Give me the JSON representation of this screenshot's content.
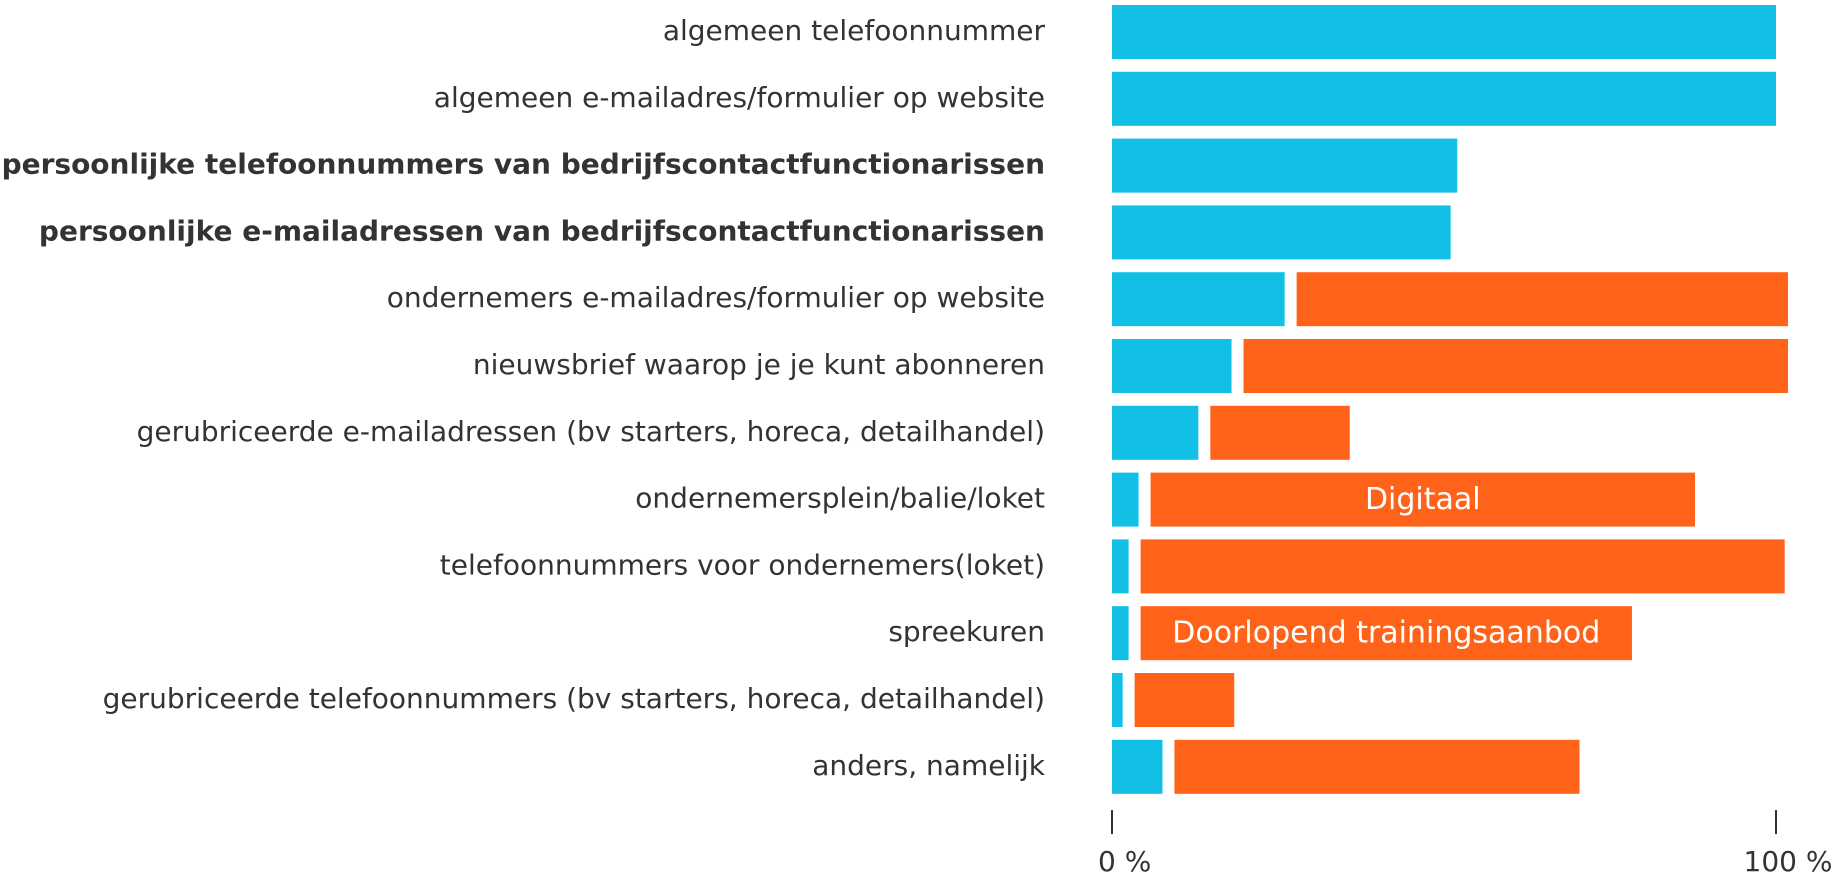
{
  "chart_data": {
    "type": "bar",
    "orientation": "horizontal",
    "stacked": true,
    "categories": [
      "algemeen telefoonnummer",
      "algemeen e-mailadres/formulier op website",
      "persoonlijke telefoonnummers van bedrijfscontactfunctionarissen",
      "persoonlijke e-mailadressen van bedrijfscontactfunctionarissen",
      "ondernemers e-mailadres/formulier op website",
      "nieuwsbrief waarop je je kunt abonneren",
      "gerubriceerde e-mailadressen (bv starters, horeca, detailhandel)",
      "ondernemersplein/balie/loket",
      "telefoonnummers voor ondernemers(loket)",
      "spreekuren",
      "gerubriceerde telefoonnummers (bv starters, horeca, detailhandel)",
      "anders, namelijk"
    ],
    "bold": [
      false,
      false,
      true,
      true,
      false,
      false,
      false,
      false,
      false,
      false,
      false,
      false
    ],
    "series": [
      {
        "color": "#12c0e6",
        "values": [
          100,
          100,
          52,
          51,
          26,
          18,
          13,
          4,
          2.5,
          2.5,
          1.6,
          7.6
        ]
      },
      {
        "color": "#ff6319",
        "values": [
          null,
          null,
          null,
          null,
          74,
          82,
          21,
          82,
          97,
          74,
          15,
          61
        ]
      }
    ],
    "annotations": [
      {
        "text": "Digitaal",
        "category": "ondernemersplein/balie/loket"
      },
      {
        "text": "Doorlopend trainingsaanbod",
        "category": "spreekuren"
      }
    ],
    "xlim": [
      0,
      100
    ],
    "xticks": [
      {
        "value": 0,
        "label": "0 %"
      },
      {
        "value": 100,
        "label": "100 %"
      }
    ]
  }
}
